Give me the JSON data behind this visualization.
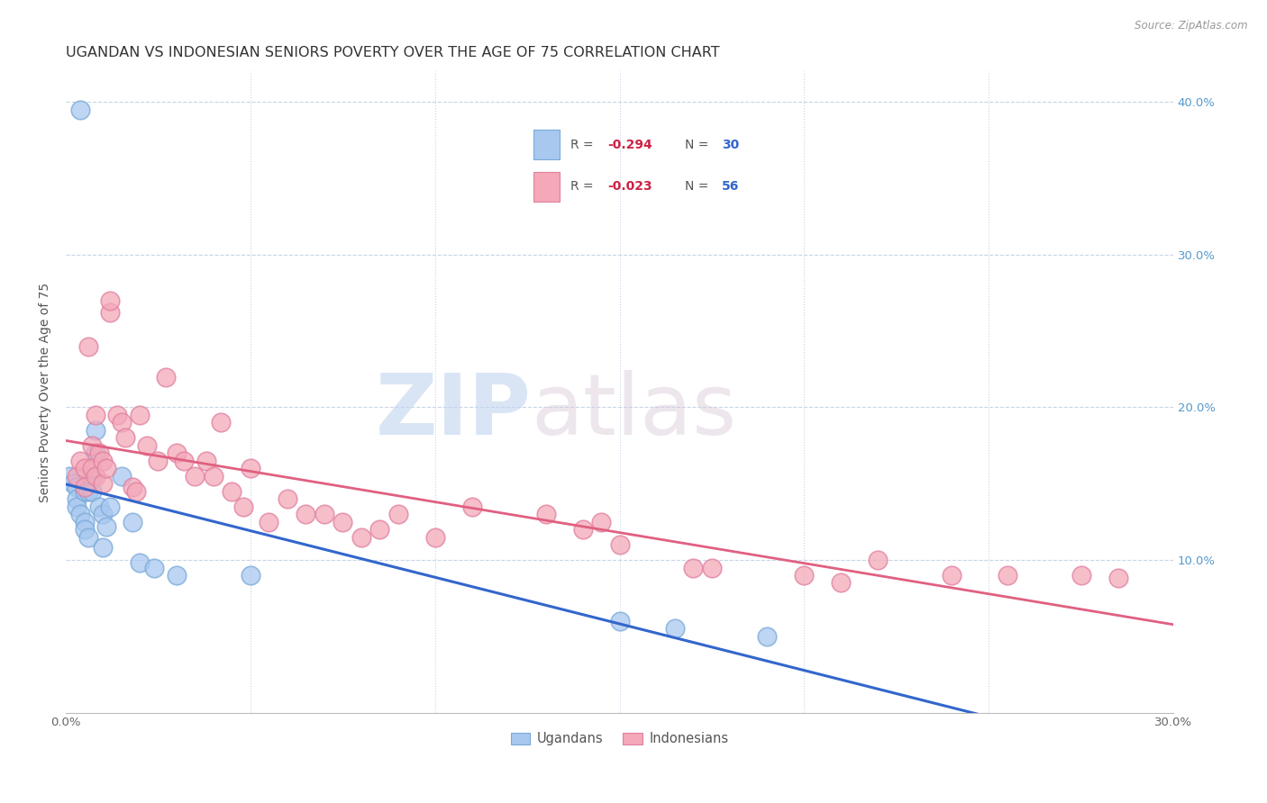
{
  "title": "UGANDAN VS INDONESIAN SENIORS POVERTY OVER THE AGE OF 75 CORRELATION CHART",
  "source": "Source: ZipAtlas.com",
  "ylabel": "Seniors Poverty Over the Age of 75",
  "xlim": [
    0,
    0.3
  ],
  "ylim": [
    0,
    0.42
  ],
  "watermark_zip": "ZIP",
  "watermark_atlas": "atlas",
  "ugandan_color": "#a8c8f0",
  "ugandan_edge": "#7aaad8",
  "indonesian_color": "#f4a8b8",
  "indonesian_edge": "#e080a0",
  "ugandan_line_color": "#3366cc",
  "indonesian_line_color": "#e06080",
  "grid_color": "#c8d4e8",
  "background_color": "#ffffff",
  "right_tick_color": "#5599cc",
  "title_fontsize": 11.5,
  "axis_label_fontsize": 10,
  "tick_fontsize": 9.5,
  "ugandan_x": [
    0.004,
    0.001,
    0.002,
    0.003,
    0.003,
    0.003,
    0.004,
    0.005,
    0.005,
    0.005,
    0.006,
    0.006,
    0.007,
    0.007,
    0.008,
    0.008,
    0.009,
    0.01,
    0.01,
    0.011,
    0.012,
    0.015,
    0.018,
    0.02,
    0.024,
    0.03,
    0.05,
    0.15,
    0.165,
    0.19
  ],
  "ugandan_y": [
    0.395,
    0.155,
    0.15,
    0.148,
    0.14,
    0.135,
    0.13,
    0.145,
    0.125,
    0.12,
    0.145,
    0.115,
    0.155,
    0.145,
    0.17,
    0.185,
    0.135,
    0.108,
    0.13,
    0.122,
    0.135,
    0.155,
    0.125,
    0.098,
    0.095,
    0.09,
    0.09,
    0.06,
    0.055,
    0.05
  ],
  "indonesian_x": [
    0.003,
    0.004,
    0.005,
    0.005,
    0.006,
    0.007,
    0.007,
    0.008,
    0.008,
    0.009,
    0.01,
    0.01,
    0.011,
    0.012,
    0.012,
    0.014,
    0.015,
    0.016,
    0.018,
    0.019,
    0.02,
    0.022,
    0.025,
    0.027,
    0.03,
    0.032,
    0.035,
    0.038,
    0.04,
    0.042,
    0.045,
    0.048,
    0.05,
    0.055,
    0.06,
    0.065,
    0.07,
    0.075,
    0.08,
    0.085,
    0.09,
    0.1,
    0.11,
    0.13,
    0.14,
    0.145,
    0.15,
    0.17,
    0.175,
    0.2,
    0.21,
    0.22,
    0.24,
    0.255,
    0.275,
    0.285
  ],
  "indonesian_y": [
    0.155,
    0.165,
    0.148,
    0.16,
    0.24,
    0.175,
    0.16,
    0.155,
    0.195,
    0.17,
    0.165,
    0.15,
    0.16,
    0.262,
    0.27,
    0.195,
    0.19,
    0.18,
    0.148,
    0.145,
    0.195,
    0.175,
    0.165,
    0.22,
    0.17,
    0.165,
    0.155,
    0.165,
    0.155,
    0.19,
    0.145,
    0.135,
    0.16,
    0.125,
    0.14,
    0.13,
    0.13,
    0.125,
    0.115,
    0.12,
    0.13,
    0.115,
    0.135,
    0.13,
    0.12,
    0.125,
    0.11,
    0.095,
    0.095,
    0.09,
    0.085,
    0.1,
    0.09,
    0.09,
    0.09,
    0.088
  ]
}
